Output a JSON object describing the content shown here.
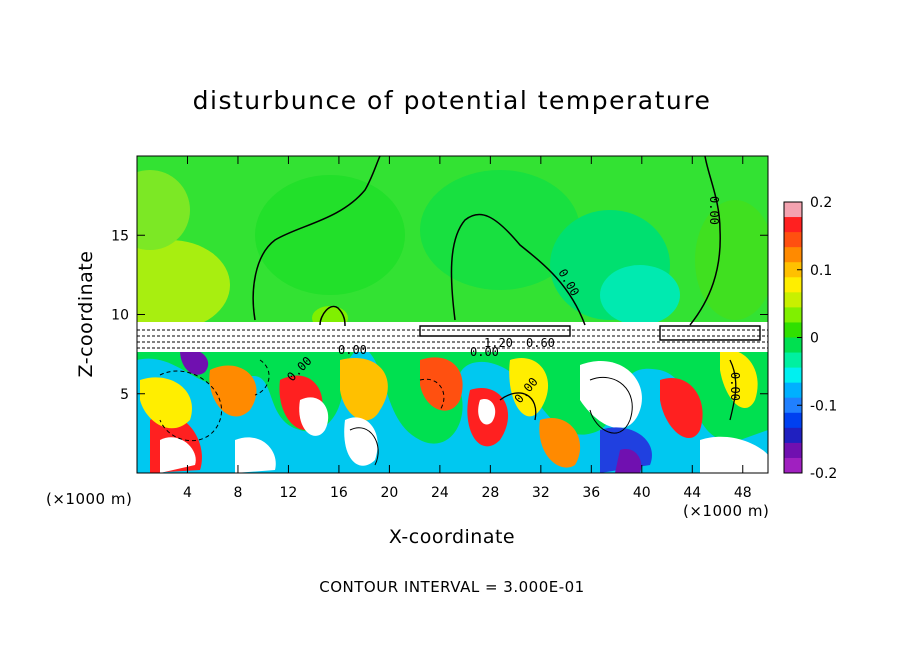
{
  "chart_data": {
    "type": "heatmap",
    "title": "disturbunce of potential temperature",
    "xlabel": "X-coordinate",
    "ylabel": "Z-coordinate",
    "x_unit": "(×1000 m)",
    "z_unit": "(×1000 m)",
    "xlim": [
      0,
      50
    ],
    "ylim": [
      0,
      20
    ],
    "x_ticks": [
      4,
      8,
      12,
      16,
      20,
      24,
      28,
      32,
      36,
      40,
      44,
      48
    ],
    "y_ticks": [
      5,
      10,
      15
    ],
    "colorbar": {
      "range": [
        -0.2,
        0.2
      ],
      "tick_values": [
        0.2,
        0.1,
        0,
        -0.1,
        -0.2
      ],
      "tick_labels": [
        "0.2",
        "0.1",
        "0",
        "-0.1",
        "-0.2"
      ],
      "colors": [
        "#f4a3b0",
        "#ff2020",
        "#ff5010",
        "#ff8a00",
        "#ffc000",
        "#ffee00",
        "#c8f000",
        "#80f000",
        "#30e000",
        "#00e050",
        "#00f0a0",
        "#00f0f0",
        "#00b0ff",
        "#2080ff",
        "#0040f0",
        "#2020c0",
        "#7010b0",
        "#a020c0"
      ]
    },
    "contour_labels": [
      "0.00",
      "0.00",
      "0.00",
      "0.00",
      "0.00",
      "1.20",
      "0.60",
      "0.00",
      "0.00",
      "0.00"
    ],
    "contour_interval_text": "CONTOUR INTERVAL = 3.000E-01"
  }
}
